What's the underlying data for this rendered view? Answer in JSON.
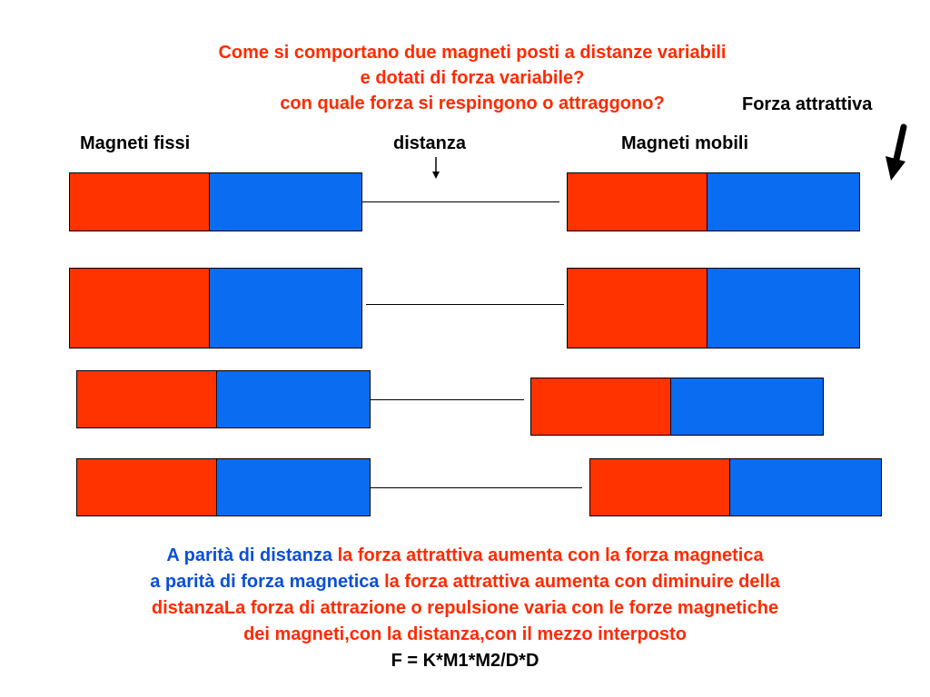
{
  "title": {
    "line1": "Come si comportano due magneti posti a distanze variabili",
    "line2": "e dotati di forza variabile?",
    "line3": "con quale forza si respingono o attraggono?"
  },
  "labels": {
    "forza_attrattiva": "Forza attrattiva",
    "magneti_fissi": "Magneti fissi",
    "distanza": "distanza",
    "magneti_mobili": "Magneti mobili"
  },
  "colors": {
    "pole_red": "#ff3300",
    "pole_blue": "#0a6cf0",
    "title_red": "#ff2a00",
    "text_blue": "#0a4fd8"
  },
  "bottom": {
    "l1_blue": "A parità di distanza",
    "l1_red": "la forza attrattiva aumenta con la forza magnetica",
    "l2_blue": "a parità di forza magnetica",
    "l2_red": "la forza attrattiva aumenta con diminuire della",
    "l3_red": "distanzaLa forza di attrazione o repulsione varia con le forze magnetiche",
    "l4_red": "dei magneti,con la distanza,con il mezzo interposto",
    "formula": "F = K*M1*M2/D*D"
  }
}
